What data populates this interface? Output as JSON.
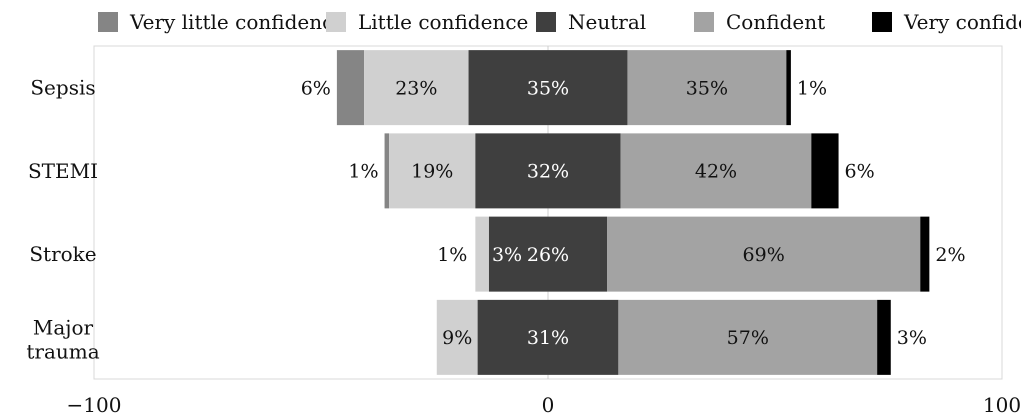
{
  "chart_data": {
    "type": "bar",
    "orientation": "horizontal",
    "stacked": "diverging",
    "categories": [
      "Sepsis",
      "STEMI",
      "Stroke",
      "Major trauma"
    ],
    "series": [
      {
        "name": "Very little confidence",
        "color": "#858585",
        "values": [
          6,
          1,
          0,
          0
        ],
        "labels": [
          "6%",
          "1%",
          "",
          ""
        ]
      },
      {
        "name": "Little confidence",
        "color": "#d0d0d0",
        "values": [
          23,
          19,
          3,
          9
        ],
        "labels": [
          "23%",
          "19%",
          "3%",
          "9%"
        ]
      },
      {
        "name": "Neutral",
        "color": "#3f3f3f",
        "values": [
          35,
          32,
          26,
          31
        ],
        "labels": [
          "35%",
          "32%",
          "26%",
          "31%"
        ]
      },
      {
        "name": "Confident",
        "color": "#a3a3a3",
        "values": [
          35,
          42,
          69,
          57
        ],
        "labels": [
          "35%",
          "42%",
          "69%",
          "57%"
        ]
      },
      {
        "name": "Very confident",
        "color": "#000000",
        "values": [
          1,
          6,
          2,
          3
        ],
        "labels": [
          "1%",
          "6%",
          "2%",
          "3%"
        ]
      }
    ],
    "extra_labels": [
      {
        "category": "Stroke",
        "label": "1%"
      }
    ],
    "xlim": [
      -100,
      100
    ],
    "xticks": [
      "−100",
      "0",
      "100"
    ],
    "legend": "top",
    "grid": false
  }
}
